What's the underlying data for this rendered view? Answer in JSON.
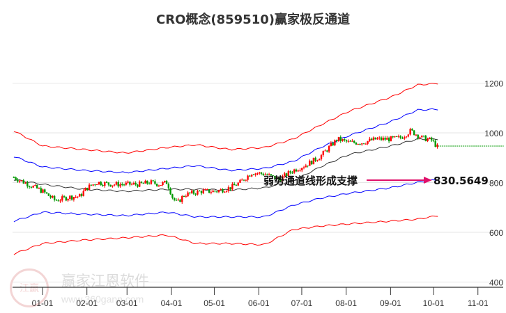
{
  "title": "CRO概念(859510)赢家极反通道",
  "watermark": {
    "name": "赢家江恩软件",
    "url": "www.360gann.com",
    "seal": "江赢恩家"
  },
  "annotation": {
    "text": "弱势通道线形成支撑",
    "value": "830.5649",
    "color": "#e0106a"
  },
  "chart_data": {
    "type": "candlestick-channel",
    "title": "CRO概念(859510)赢家极反通道",
    "x_unit": "days since 01-01",
    "ylim": [
      380,
      1260
    ],
    "yticks": [
      400,
      600,
      800,
      1000,
      1200
    ],
    "xticks": [
      {
        "d": 0,
        "label": "01-01"
      },
      {
        "d": 31,
        "label": "02-01"
      },
      {
        "d": 59,
        "label": "03-01"
      },
      {
        "d": 90,
        "label": "04-01"
      },
      {
        "d": 120,
        "label": "05-01"
      },
      {
        "d": 151,
        "label": "06-01"
      },
      {
        "d": 181,
        "label": "07-01"
      },
      {
        "d": 212,
        "label": "08-01"
      },
      {
        "d": 243,
        "label": "09-01"
      },
      {
        "d": 273,
        "label": "10-01"
      },
      {
        "d": 304,
        "label": "11-01"
      }
    ],
    "price": [
      [
        -20,
        821
      ],
      [
        -10,
        793
      ],
      [
        0,
        765
      ],
      [
        9,
        728
      ],
      [
        19,
        742
      ],
      [
        26,
        745
      ],
      [
        31,
        779
      ],
      [
        38,
        801
      ],
      [
        48,
        793
      ],
      [
        58,
        793
      ],
      [
        68,
        793
      ],
      [
        75,
        801
      ],
      [
        82,
        793
      ],
      [
        87,
        801
      ],
      [
        91,
        737
      ],
      [
        94,
        717
      ],
      [
        99,
        751
      ],
      [
        111,
        765
      ],
      [
        121,
        765
      ],
      [
        131,
        779
      ],
      [
        138,
        801
      ],
      [
        146,
        840
      ],
      [
        155,
        835
      ],
      [
        165,
        812
      ],
      [
        175,
        849
      ],
      [
        184,
        871
      ],
      [
        194,
        905
      ],
      [
        201,
        947
      ],
      [
        206,
        975
      ],
      [
        214,
        961
      ],
      [
        223,
        961
      ],
      [
        233,
        975
      ],
      [
        243,
        975
      ],
      [
        250,
        980
      ],
      [
        257,
        1008
      ],
      [
        265,
        980
      ],
      [
        272,
        969
      ],
      [
        276,
        941
      ]
    ],
    "projection": {
      "value": 947,
      "from": 276,
      "to": 322
    },
    "series": [
      {
        "name": "upper-outer",
        "color": "#ff0000",
        "points": [
          [
            -20,
            1008
          ],
          [
            0,
            947
          ],
          [
            29,
            933
          ],
          [
            58,
            919
          ],
          [
            87,
            941
          ],
          [
            107,
            952
          ],
          [
            131,
            933
          ],
          [
            155,
            941
          ],
          [
            175,
            975
          ],
          [
            194,
            1031
          ],
          [
            214,
            1087
          ],
          [
            243,
            1143
          ],
          [
            262,
            1193
          ],
          [
            276,
            1199
          ]
        ]
      },
      {
        "name": "upper-inner",
        "color": "#0000ff",
        "points": [
          [
            -20,
            905
          ],
          [
            0,
            863
          ],
          [
            29,
            849
          ],
          [
            58,
            840
          ],
          [
            87,
            857
          ],
          [
            107,
            868
          ],
          [
            131,
            849
          ],
          [
            155,
            857
          ],
          [
            175,
            885
          ],
          [
            194,
            941
          ],
          [
            214,
            989
          ],
          [
            243,
            1045
          ],
          [
            262,
            1092
          ],
          [
            276,
            1095
          ]
        ]
      },
      {
        "name": "middle",
        "color": "#333333",
        "points": [
          [
            -20,
            812
          ],
          [
            0,
            793
          ],
          [
            29,
            773
          ],
          [
            58,
            765
          ],
          [
            87,
            773
          ],
          [
            107,
            773
          ],
          [
            131,
            770
          ],
          [
            155,
            779
          ],
          [
            175,
            807
          ],
          [
            194,
            863
          ],
          [
            214,
            913
          ],
          [
            243,
            947
          ],
          [
            262,
            975
          ],
          [
            276,
            975
          ]
        ]
      },
      {
        "name": "lower-inner",
        "color": "#0000ff",
        "points": [
          [
            -20,
            645
          ],
          [
            0,
            681
          ],
          [
            29,
            673
          ],
          [
            58,
            667
          ],
          [
            87,
            681
          ],
          [
            107,
            662
          ],
          [
            131,
            662
          ],
          [
            155,
            662
          ],
          [
            175,
            709
          ],
          [
            194,
            737
          ],
          [
            214,
            757
          ],
          [
            243,
            779
          ],
          [
            262,
            801
          ],
          [
            276,
            812
          ]
        ]
      },
      {
        "name": "lower-outer",
        "color": "#ff0000",
        "points": [
          [
            -20,
            513
          ],
          [
            0,
            555
          ],
          [
            29,
            569
          ],
          [
            58,
            578
          ],
          [
            87,
            589
          ],
          [
            107,
            555
          ],
          [
            131,
            555
          ],
          [
            155,
            550
          ],
          [
            175,
            611
          ],
          [
            194,
            625
          ],
          [
            214,
            634
          ],
          [
            243,
            645
          ],
          [
            262,
            653
          ],
          [
            276,
            667
          ]
        ]
      }
    ]
  }
}
